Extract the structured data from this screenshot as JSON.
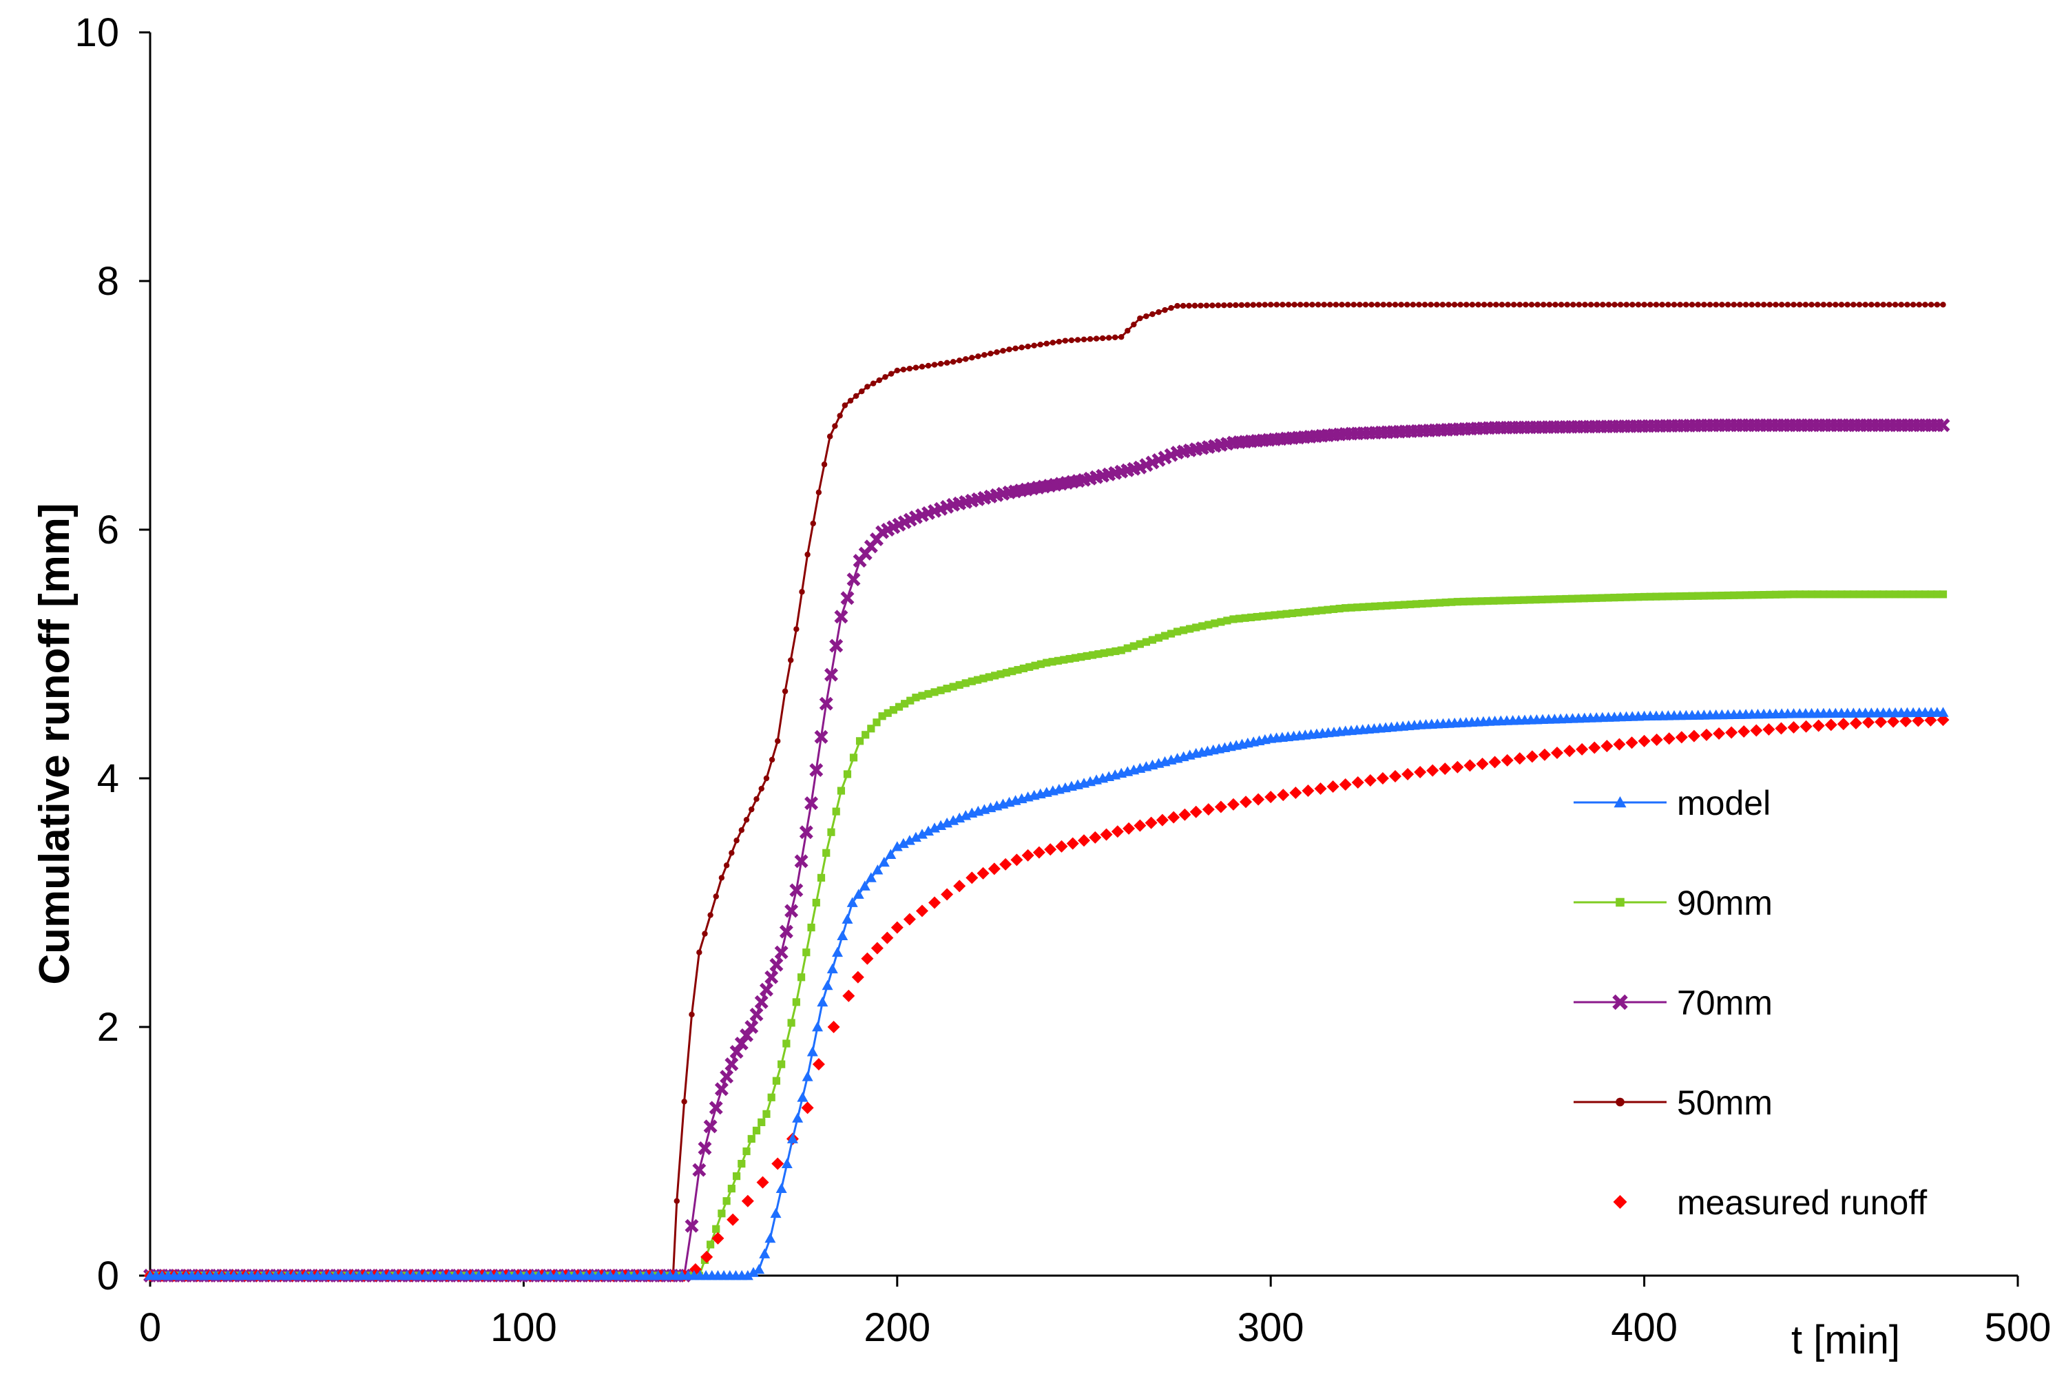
{
  "chart_data": {
    "type": "line",
    "title": "",
    "xlabel": "t [min]",
    "ylabel": "Cumulative runoff  [mm]",
    "xlim": [
      0,
      500
    ],
    "ylim": [
      0,
      10
    ],
    "x_ticks": [
      "0",
      "100",
      "200",
      "300",
      "400",
      "500"
    ],
    "y_ticks": [
      "0",
      "2",
      "4",
      "6",
      "8",
      "10"
    ],
    "grid": false,
    "legend_position": "right",
    "series": [
      {
        "name": "model",
        "color": "#1E6FFF",
        "marker": "triangle",
        "points": [
          [
            0,
            0
          ],
          [
            160,
            0
          ],
          [
            163,
            0.05
          ],
          [
            166,
            0.3
          ],
          [
            169,
            0.7
          ],
          [
            172,
            1.1
          ],
          [
            176,
            1.6
          ],
          [
            180,
            2.2
          ],
          [
            184,
            2.6
          ],
          [
            188,
            3.0
          ],
          [
            193,
            3.2
          ],
          [
            200,
            3.45
          ],
          [
            210,
            3.6
          ],
          [
            220,
            3.72
          ],
          [
            235,
            3.85
          ],
          [
            250,
            3.96
          ],
          [
            265,
            4.08
          ],
          [
            280,
            4.2
          ],
          [
            300,
            4.32
          ],
          [
            320,
            4.38
          ],
          [
            340,
            4.43
          ],
          [
            360,
            4.46
          ],
          [
            400,
            4.5
          ],
          [
            440,
            4.52
          ],
          [
            480,
            4.53
          ]
        ]
      },
      {
        "name": "90mm",
        "color": "#7FCC22",
        "marker": "square",
        "points": [
          [
            0,
            0
          ],
          [
            147,
            0
          ],
          [
            150,
            0.25
          ],
          [
            153,
            0.5
          ],
          [
            157,
            0.8
          ],
          [
            161,
            1.1
          ],
          [
            165,
            1.3
          ],
          [
            169,
            1.7
          ],
          [
            173,
            2.2
          ],
          [
            177,
            2.8
          ],
          [
            181,
            3.4
          ],
          [
            185,
            3.9
          ],
          [
            190,
            4.3
          ],
          [
            196,
            4.5
          ],
          [
            205,
            4.65
          ],
          [
            220,
            4.78
          ],
          [
            240,
            4.93
          ],
          [
            260,
            5.03
          ],
          [
            275,
            5.18
          ],
          [
            290,
            5.28
          ],
          [
            320,
            5.37
          ],
          [
            350,
            5.42
          ],
          [
            400,
            5.46
          ],
          [
            440,
            5.48
          ],
          [
            480,
            5.48
          ]
        ]
      },
      {
        "name": "70mm",
        "color": "#8B1A8B",
        "marker": "x",
        "points": [
          [
            0,
            0
          ],
          [
            143,
            0
          ],
          [
            145,
            0.4
          ],
          [
            147,
            0.85
          ],
          [
            150,
            1.2
          ],
          [
            153,
            1.5
          ],
          [
            157,
            1.8
          ],
          [
            161,
            2.0
          ],
          [
            165,
            2.3
          ],
          [
            169,
            2.6
          ],
          [
            173,
            3.1
          ],
          [
            177,
            3.8
          ],
          [
            181,
            4.6
          ],
          [
            185,
            5.3
          ],
          [
            190,
            5.75
          ],
          [
            196,
            5.98
          ],
          [
            205,
            6.1
          ],
          [
            215,
            6.2
          ],
          [
            230,
            6.3
          ],
          [
            250,
            6.4
          ],
          [
            265,
            6.5
          ],
          [
            275,
            6.62
          ],
          [
            290,
            6.7
          ],
          [
            320,
            6.77
          ],
          [
            360,
            6.82
          ],
          [
            420,
            6.84
          ],
          [
            480,
            6.84
          ]
        ]
      },
      {
        "name": "50mm",
        "color": "#8B0000",
        "marker": "circle",
        "points": [
          [
            0,
            0
          ],
          [
            140,
            0
          ],
          [
            141,
            0.6
          ],
          [
            143,
            1.4
          ],
          [
            145,
            2.1
          ],
          [
            147,
            2.6
          ],
          [
            150,
            2.9
          ],
          [
            153,
            3.2
          ],
          [
            157,
            3.5
          ],
          [
            161,
            3.75
          ],
          [
            165,
            4.0
          ],
          [
            168,
            4.3
          ],
          [
            170,
            4.7
          ],
          [
            173,
            5.2
          ],
          [
            176,
            5.8
          ],
          [
            179,
            6.3
          ],
          [
            182,
            6.75
          ],
          [
            186,
            7.0
          ],
          [
            192,
            7.15
          ],
          [
            200,
            7.28
          ],
          [
            215,
            7.35
          ],
          [
            230,
            7.45
          ],
          [
            245,
            7.52
          ],
          [
            260,
            7.55
          ],
          [
            265,
            7.7
          ],
          [
            275,
            7.8
          ],
          [
            300,
            7.81
          ],
          [
            400,
            7.81
          ],
          [
            480,
            7.81
          ]
        ]
      },
      {
        "name": "measured runoff",
        "color": "#FF0000",
        "marker": "diamond",
        "line": false,
        "points": [
          [
            0,
            0
          ],
          [
            143,
            0
          ],
          [
            146,
            0.05
          ],
          [
            149,
            0.15
          ],
          [
            152,
            0.3
          ],
          [
            156,
            0.45
          ],
          [
            160,
            0.6
          ],
          [
            164,
            0.75
          ],
          [
            168,
            0.9
          ],
          [
            172,
            1.1
          ],
          [
            176,
            1.35
          ],
          [
            179,
            1.7
          ],
          [
            183,
            2.0
          ],
          [
            187,
            2.25
          ],
          [
            192,
            2.55
          ],
          [
            200,
            2.8
          ],
          [
            210,
            3.0
          ],
          [
            220,
            3.2
          ],
          [
            235,
            3.38
          ],
          [
            250,
            3.5
          ],
          [
            265,
            3.62
          ],
          [
            280,
            3.73
          ],
          [
            300,
            3.85
          ],
          [
            320,
            3.95
          ],
          [
            340,
            4.05
          ],
          [
            360,
            4.13
          ],
          [
            380,
            4.22
          ],
          [
            400,
            4.3
          ],
          [
            420,
            4.36
          ],
          [
            440,
            4.41
          ],
          [
            460,
            4.45
          ],
          [
            480,
            4.47
          ]
        ]
      }
    ]
  }
}
